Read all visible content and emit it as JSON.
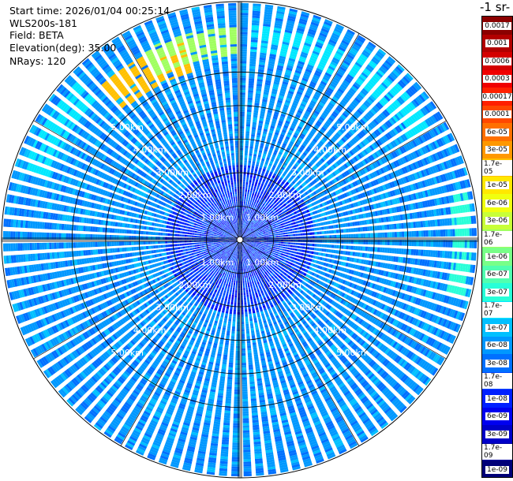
{
  "header": {
    "start_time": "Start time: 2026/01/04 00:25:14",
    "instrument": "WLS200s-181",
    "field": "Field: BETA",
    "elevation": "Elevation(deg): 35.00",
    "nrays": "NRays: 120"
  },
  "colorbar": {
    "title": "-1 sr-",
    "labels": [
      "0.0017",
      "0.001",
      "0.0006",
      "0.0003",
      "0.00017",
      "0.0001",
      "6e-05",
      "3e-05",
      "1.7e-05",
      "1e-05",
      "6e-06",
      "3e-06",
      "1.7e-06",
      "1e-06",
      "6e-07",
      "3e-07",
      "1.7e-07",
      "1e-07",
      "6e-08",
      "3e-08",
      "1.7e-08",
      "1e-08",
      "6e-09",
      "3e-09",
      "1.7e-09",
      "1e-09"
    ],
    "colors": [
      "#8b0000",
      "#b20000",
      "#d40000",
      "#f00000",
      "#ff2000",
      "#ff4800",
      "#ff7000",
      "#ff9800",
      "#ffc000",
      "#ffe800",
      "#f0ff10",
      "#c8ff38",
      "#a0ff60",
      "#78ff88",
      "#50ffb0",
      "#28ffd8",
      "#00e8ff",
      "#00c0ff",
      "#0098ff",
      "#0070ff",
      "#0048ff",
      "#0020ff",
      "#0000f0",
      "#0000c8",
      "#0000a0",
      "#000078"
    ]
  },
  "chart_data": {
    "type": "heatmap",
    "projection": "polar-ppi",
    "field": "BETA",
    "elevation_deg": 35.0,
    "n_rays": 120,
    "range_unit": "km",
    "range_rings_km": [
      1,
      2,
      3,
      4,
      5
    ],
    "ring_labels": [
      "1.00km",
      "2.00km",
      "3.00km",
      "4.00km",
      "5.00km"
    ],
    "max_range_km": 7.1,
    "color_scale": "log",
    "value_range": [
      1e-09,
      0.0017
    ],
    "background_level": 6e-08,
    "features": [
      {
        "azimuth_deg_from_north_cw": 330,
        "range_km": [
          5.2,
          6.2
        ],
        "value": 1.7e-05
      },
      {
        "azimuth_deg_from_north_cw": 345,
        "range_km": [
          5.5,
          6.3
        ],
        "value": 1.7e-06
      },
      {
        "azimuth_deg_from_north_cw": 15,
        "range_km": [
          5.6,
          6.4
        ],
        "value": 1.7e-07
      },
      {
        "azimuth_deg_from_north_cw": 45,
        "range_km": [
          5.8,
          6.6
        ],
        "value": 1.7e-07
      },
      {
        "azimuth_deg_from_north_cw": 90,
        "range_km": [
          6.3,
          6.9
        ],
        "value": 3e-07
      },
      {
        "azimuth_deg_from_north_cw": 300,
        "range_km": [
          6.0,
          6.8
        ],
        "value": 1.7e-07
      },
      {
        "azimuth_deg_from_north_cw": 0,
        "range_km": [
          0,
          1.8
        ],
        "value": 1e-08
      }
    ]
  }
}
